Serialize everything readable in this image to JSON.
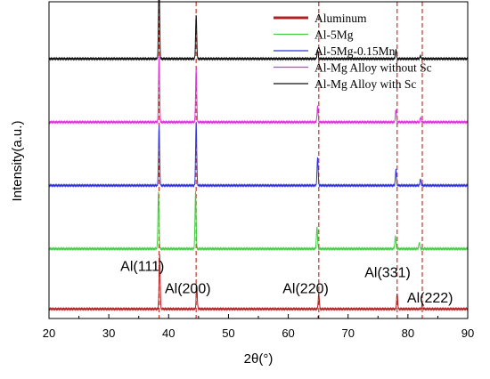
{
  "chart_data": {
    "type": "line",
    "title": "",
    "xlabel": "2θ(°)",
    "ylabel": "Intensity(a.u.)",
    "xlim": [
      20,
      90
    ],
    "xticks": [
      20,
      30,
      40,
      50,
      60,
      70,
      80,
      90
    ],
    "y_ticks_shown": false,
    "legend_position": "top-right",
    "series": [
      {
        "name": "Aluminum",
        "color": "#b22222",
        "baseline": 0.03,
        "peaks": [
          [
            38.5,
            0.17
          ],
          [
            44.7,
            0.07
          ],
          [
            65.1,
            0.05
          ],
          [
            78.2,
            0.05
          ],
          [
            82.4,
            0.015
          ]
        ]
      },
      {
        "name": "Al-5Mg",
        "color": "#44cc44",
        "baseline": 0.22,
        "peaks": [
          [
            38.3,
            0.18
          ],
          [
            44.5,
            0.18
          ],
          [
            64.8,
            0.07
          ],
          [
            77.9,
            0.04
          ],
          [
            81.9,
            0.02
          ]
        ]
      },
      {
        "name": "Al-5Mg-0.15Mn",
        "color": "#3333dd",
        "baseline": 0.42,
        "peaks": [
          [
            38.4,
            0.19
          ],
          [
            44.6,
            0.2
          ],
          [
            64.9,
            0.09
          ],
          [
            78.0,
            0.05
          ],
          [
            82.1,
            0.02
          ]
        ]
      },
      {
        "name": "Al-Mg Alloy without Sc",
        "color": "#dd33dd",
        "baseline": 0.62,
        "peaks": [
          [
            38.4,
            0.21
          ],
          [
            44.6,
            0.17
          ],
          [
            64.9,
            0.05
          ],
          [
            78.0,
            0.04
          ],
          [
            82.1,
            0.015
          ]
        ]
      },
      {
        "name": "Al-Mg Alloy with Sc",
        "color": "#111111",
        "baseline": 0.82,
        "peaks": [
          [
            38.4,
            0.27
          ],
          [
            44.6,
            0.14
          ],
          [
            64.9,
            0.03
          ],
          [
            78.0,
            0.03
          ],
          [
            82.1,
            0.01
          ]
        ]
      }
    ],
    "reference_lines": [
      38.4,
      44.6,
      65.1,
      78.2,
      82.4
    ],
    "reference_line_color": "#c0392b",
    "annotations": [
      {
        "text": "Al(111)",
        "x": 35.6,
        "y": 0.15
      },
      {
        "text": "Al(200)",
        "x": 43.2,
        "y": 0.08
      },
      {
        "text": "Al(220)",
        "x": 62.9,
        "y": 0.08
      },
      {
        "text": "Al(331)",
        "x": 76.6,
        "y": 0.13
      },
      {
        "text": "Al(222)",
        "x": 83.7,
        "y": 0.05
      }
    ]
  }
}
